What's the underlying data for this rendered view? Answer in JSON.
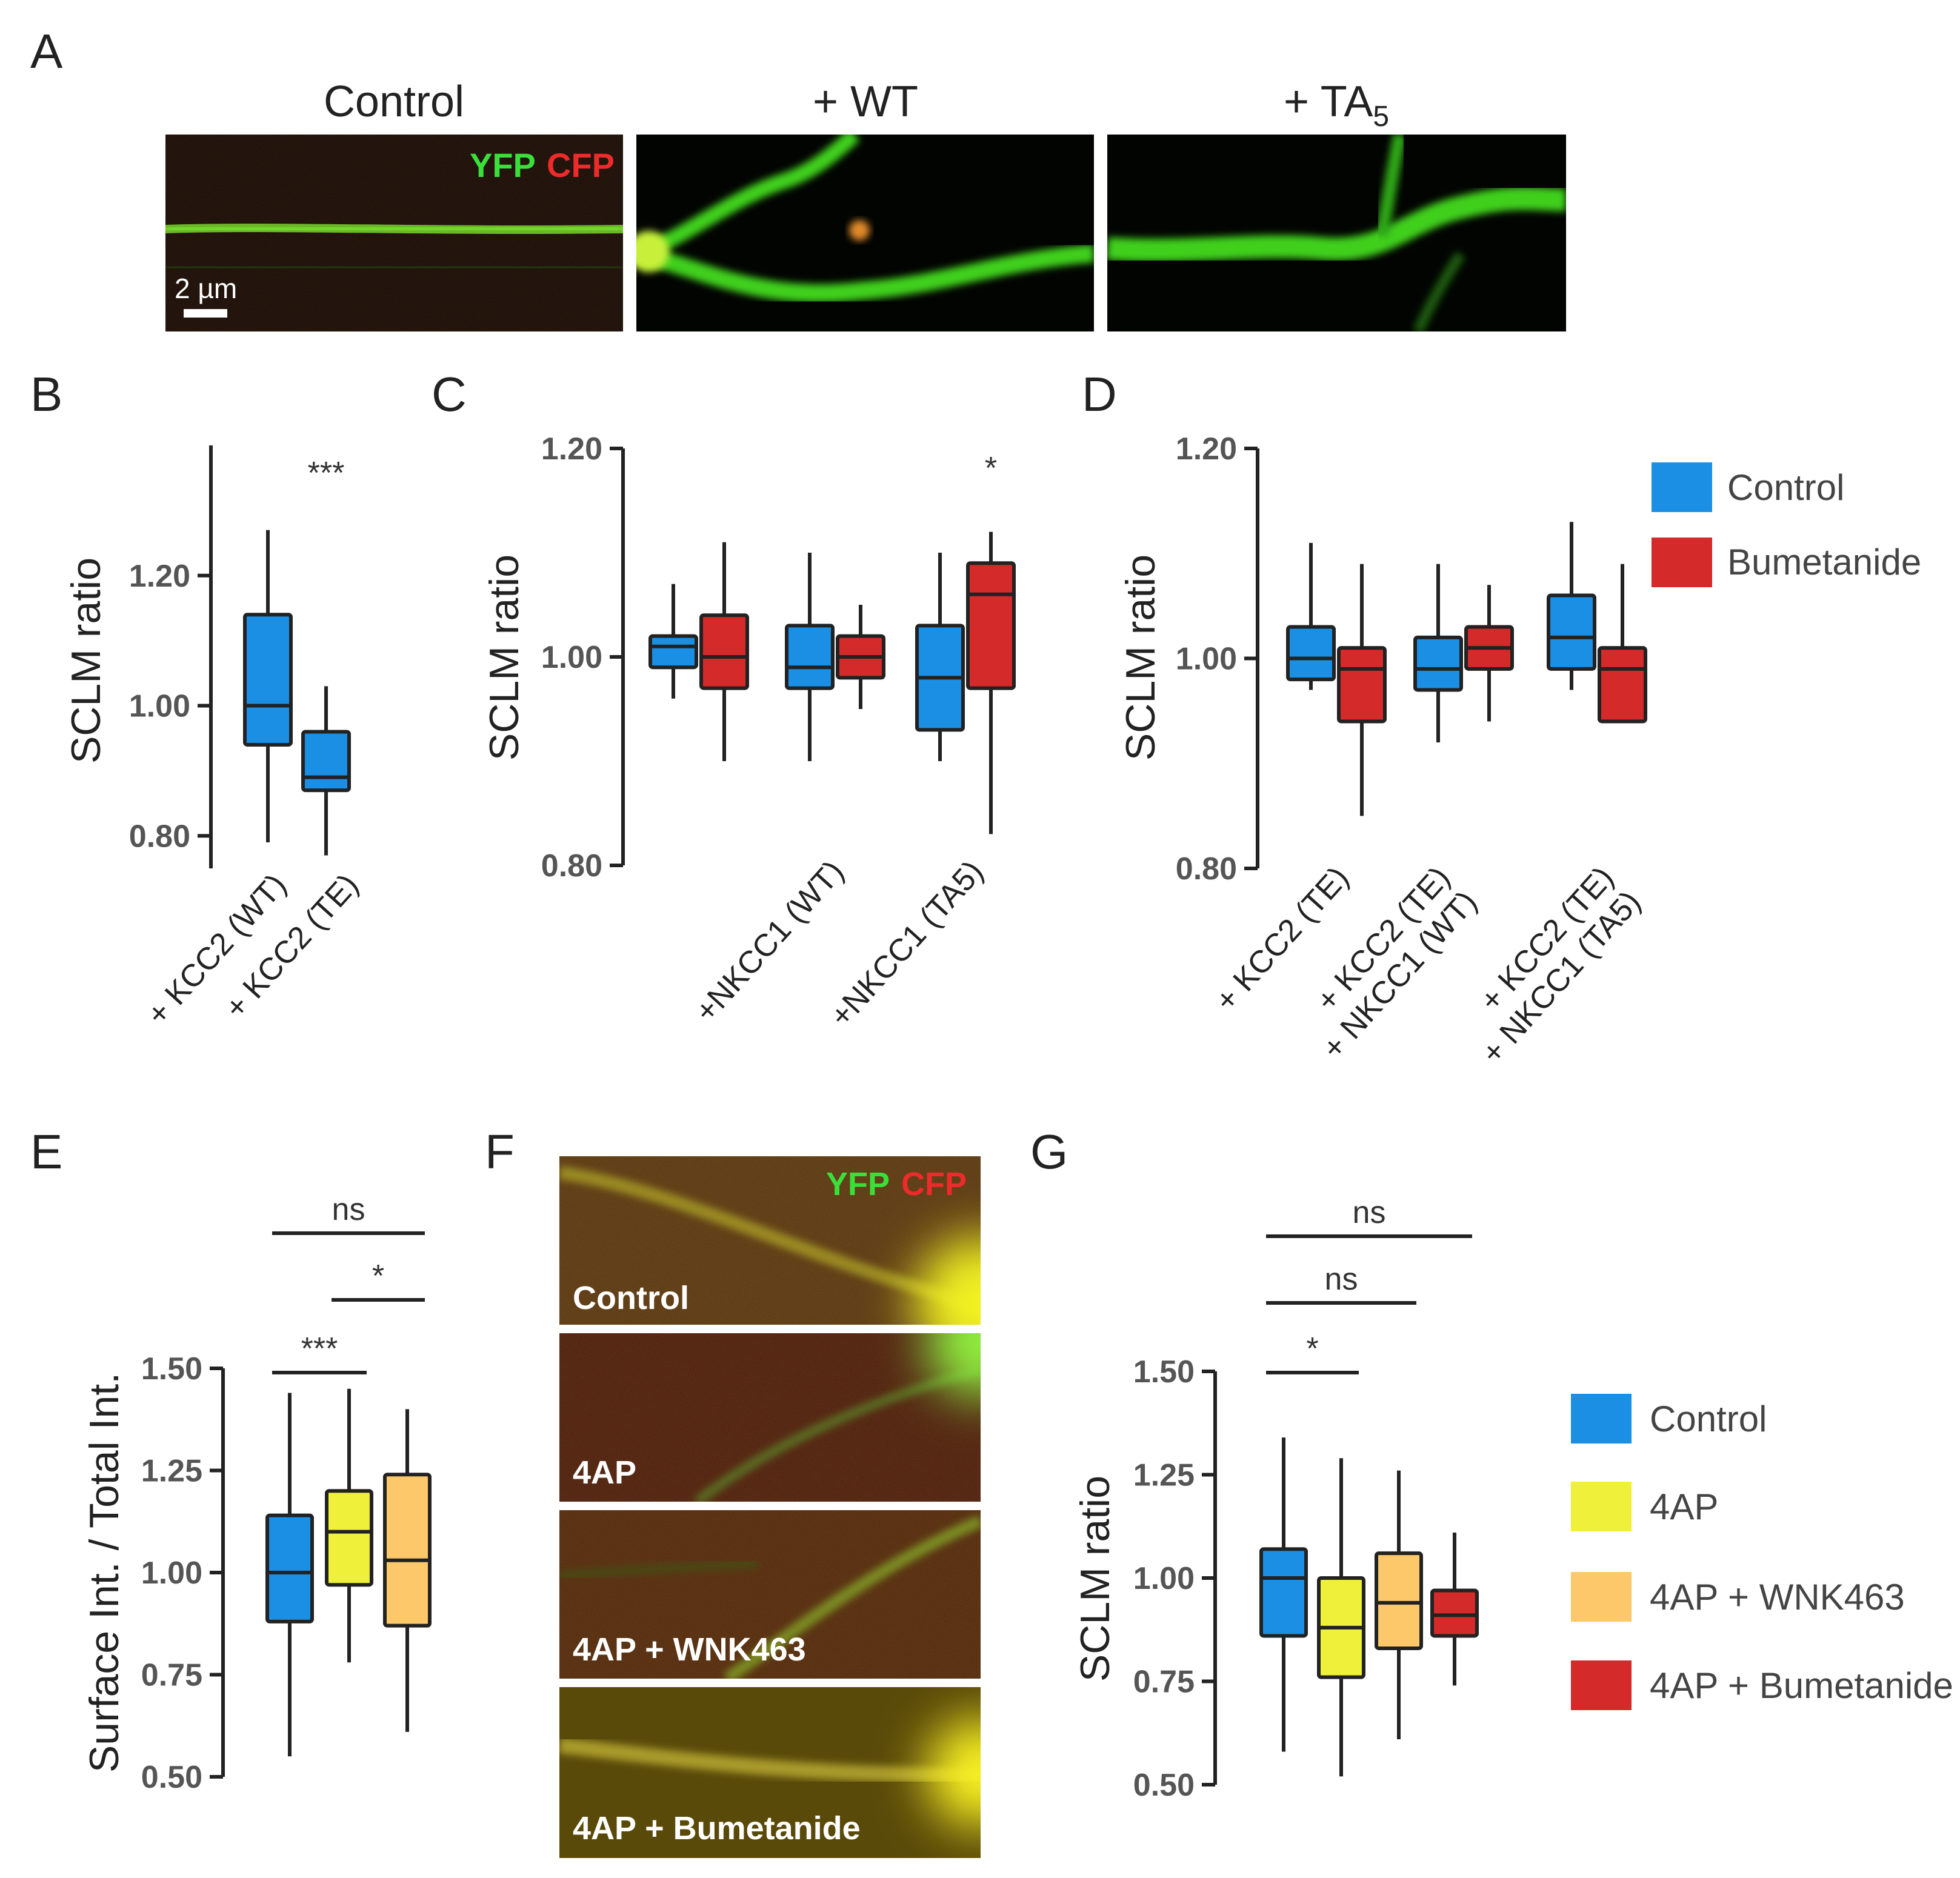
{
  "panel_letters": {
    "A": "A",
    "B": "B",
    "C": "C",
    "D": "D",
    "E": "E",
    "F": "F",
    "G": "G"
  },
  "colors": {
    "control": "#1a8fe3",
    "bumetanide": "#d42a2a",
    "ap4": "#eef03a",
    "wnk": "#fcc86a",
    "yfp": "#3ae03a",
    "cfp": "#ee2a2a",
    "axis": "#222222"
  },
  "panelA": {
    "titles": [
      "Control",
      "+ WT",
      "+ TA"
    ],
    "ta_subscript": "5",
    "yfp": "YFP",
    "cfp": "CFP",
    "scalebar": "2 µm"
  },
  "panelF": {
    "yfp": "YFP",
    "cfp": "CFP",
    "labels": [
      "Control",
      "4AP",
      "4AP + WNK463",
      "4AP + Bumetanide"
    ]
  },
  "legendD": [
    {
      "label": "Control",
      "color": "#1a8fe3"
    },
    {
      "label": "Bumetanide",
      "color": "#d42a2a"
    }
  ],
  "legendG": [
    {
      "label": "Control",
      "color": "#1a8fe3"
    },
    {
      "label": "4AP",
      "color": "#eef03a"
    },
    {
      "label": "4AP + WNK463",
      "color": "#fcc86a"
    },
    {
      "label": "4AP + Bumetanide",
      "color": "#d42a2a"
    }
  ],
  "chart_data": [
    {
      "panel": "B",
      "type": "box",
      "ylabel": "SCLM ratio",
      "ylim": [
        0.75,
        1.4
      ],
      "yticks": [
        0.8,
        1.0,
        1.2
      ],
      "yticklabels": [
        "0.80",
        "1.00",
        "1.20"
      ],
      "categories": [
        "+ KCC2 (WT)",
        "+ KCC2 (TE)"
      ],
      "boxes": [
        {
          "group": 0,
          "color": "control",
          "min": 0.79,
          "q1": 0.94,
          "median": 1.0,
          "q3": 1.14,
          "max": 1.27
        },
        {
          "group": 1,
          "color": "control",
          "min": 0.77,
          "q1": 0.87,
          "median": 0.89,
          "q3": 0.96,
          "max": 1.03
        }
      ],
      "significance": [
        {
          "text": "***",
          "group": 1
        }
      ]
    },
    {
      "panel": "C",
      "type": "box",
      "ylabel": "SCLM ratio",
      "ylim": [
        0.8,
        1.2
      ],
      "yticks": [
        0.8,
        1.0,
        1.2
      ],
      "yticklabels": [
        "0.80",
        "1.00",
        "1.20"
      ],
      "categories": [
        "",
        "+NKCC1 (WT)",
        "+NKCC1 (TA5)"
      ],
      "boxes": [
        {
          "group": 0,
          "color": "control",
          "min": 0.96,
          "q1": 0.99,
          "median": 1.01,
          "q3": 1.02,
          "max": 1.07
        },
        {
          "group": 0,
          "color": "bumetanide",
          "min": 0.9,
          "q1": 0.97,
          "median": 1.0,
          "q3": 1.04,
          "max": 1.11
        },
        {
          "group": 1,
          "color": "control",
          "min": 0.9,
          "q1": 0.97,
          "median": 0.99,
          "q3": 1.03,
          "max": 1.1
        },
        {
          "group": 1,
          "color": "bumetanide",
          "min": 0.95,
          "q1": 0.98,
          "median": 1.0,
          "q3": 1.02,
          "max": 1.05
        },
        {
          "group": 2,
          "color": "control",
          "min": 0.9,
          "q1": 0.93,
          "median": 0.98,
          "q3": 1.03,
          "max": 1.1
        },
        {
          "group": 2,
          "color": "bumetanide",
          "min": 0.83,
          "q1": 0.97,
          "median": 1.06,
          "q3": 1.09,
          "max": 1.12
        }
      ],
      "significance": [
        {
          "text": "*",
          "group": 2
        }
      ]
    },
    {
      "panel": "D",
      "type": "box",
      "ylabel": "SCLM ratio",
      "ylim": [
        0.8,
        1.2
      ],
      "yticks": [
        0.8,
        1.0,
        1.2
      ],
      "yticklabels": [
        "0.80",
        "1.00",
        "1.20"
      ],
      "categories": [
        "+ KCC2 (TE)",
        "+ KCC2 (TE)\n+ NKCC1 (WT)",
        "+ KCC2 (TE)\n+ NKCC1 (TA5)"
      ],
      "boxes": [
        {
          "group": 0,
          "color": "control",
          "min": 0.97,
          "q1": 0.98,
          "median": 1.0,
          "q3": 1.03,
          "max": 1.11
        },
        {
          "group": 0,
          "color": "bumetanide",
          "min": 0.85,
          "q1": 0.94,
          "median": 0.99,
          "q3": 1.01,
          "max": 1.09
        },
        {
          "group": 1,
          "color": "control",
          "min": 0.92,
          "q1": 0.97,
          "median": 0.99,
          "q3": 1.02,
          "max": 1.09
        },
        {
          "group": 1,
          "color": "bumetanide",
          "min": 0.94,
          "q1": 0.99,
          "median": 1.01,
          "q3": 1.03,
          "max": 1.07
        },
        {
          "group": 2,
          "color": "control",
          "min": 0.97,
          "q1": 0.99,
          "median": 1.02,
          "q3": 1.06,
          "max": 1.13
        },
        {
          "group": 2,
          "color": "bumetanide",
          "min": 0.94,
          "q1": 0.94,
          "median": 0.99,
          "q3": 1.01,
          "max": 1.09
        }
      ]
    },
    {
      "panel": "E",
      "type": "box",
      "ylabel": "Surface Int. / Total Int.",
      "ylim": [
        0.5,
        1.5
      ],
      "yticks": [
        0.5,
        0.75,
        1.0,
        1.25,
        1.5
      ],
      "yticklabels": [
        "0.50",
        "0.75",
        "1.00",
        "1.25",
        "1.50"
      ],
      "boxes": [
        {
          "group": 0,
          "color": "control",
          "min": 0.55,
          "q1": 0.88,
          "median": 1.0,
          "q3": 1.14,
          "max": 1.44
        },
        {
          "group": 1,
          "color": "ap4",
          "min": 0.78,
          "q1": 0.97,
          "median": 1.1,
          "q3": 1.2,
          "max": 1.45
        },
        {
          "group": 2,
          "color": "wnk",
          "min": 0.61,
          "q1": 0.87,
          "median": 1.03,
          "q3": 1.24,
          "max": 1.4
        }
      ],
      "significance": [
        {
          "text": "ns",
          "from": 0,
          "to": 2,
          "level": 3
        },
        {
          "text": "*",
          "from": 1,
          "to": 2,
          "level": 2
        },
        {
          "text": "***",
          "from": 0,
          "to": 1,
          "level": 1
        }
      ]
    },
    {
      "panel": "G",
      "type": "box",
      "ylabel": "SCLM ratio",
      "ylim": [
        0.5,
        1.5
      ],
      "yticks": [
        0.5,
        0.75,
        1.0,
        1.25,
        1.5
      ],
      "yticklabels": [
        "0.50",
        "0.75",
        "1.00",
        "1.25",
        "1.50"
      ],
      "boxes": [
        {
          "group": 0,
          "color": "control",
          "min": 0.58,
          "q1": 0.86,
          "median": 1.0,
          "q3": 1.07,
          "max": 1.34
        },
        {
          "group": 1,
          "color": "ap4",
          "min": 0.52,
          "q1": 0.76,
          "median": 0.88,
          "q3": 1.0,
          "max": 1.29
        },
        {
          "group": 2,
          "color": "wnk",
          "min": 0.61,
          "q1": 0.83,
          "median": 0.94,
          "q3": 1.06,
          "max": 1.26
        },
        {
          "group": 3,
          "color": "bumetanide",
          "min": 0.74,
          "q1": 0.86,
          "median": 0.91,
          "q3": 0.97,
          "max": 1.11
        }
      ],
      "significance": [
        {
          "text": "ns",
          "from": 0,
          "to": 3,
          "level": 3
        },
        {
          "text": "ns",
          "from": 0,
          "to": 2,
          "level": 2
        },
        {
          "text": "*",
          "from": 0,
          "to": 1,
          "level": 1
        }
      ]
    }
  ]
}
